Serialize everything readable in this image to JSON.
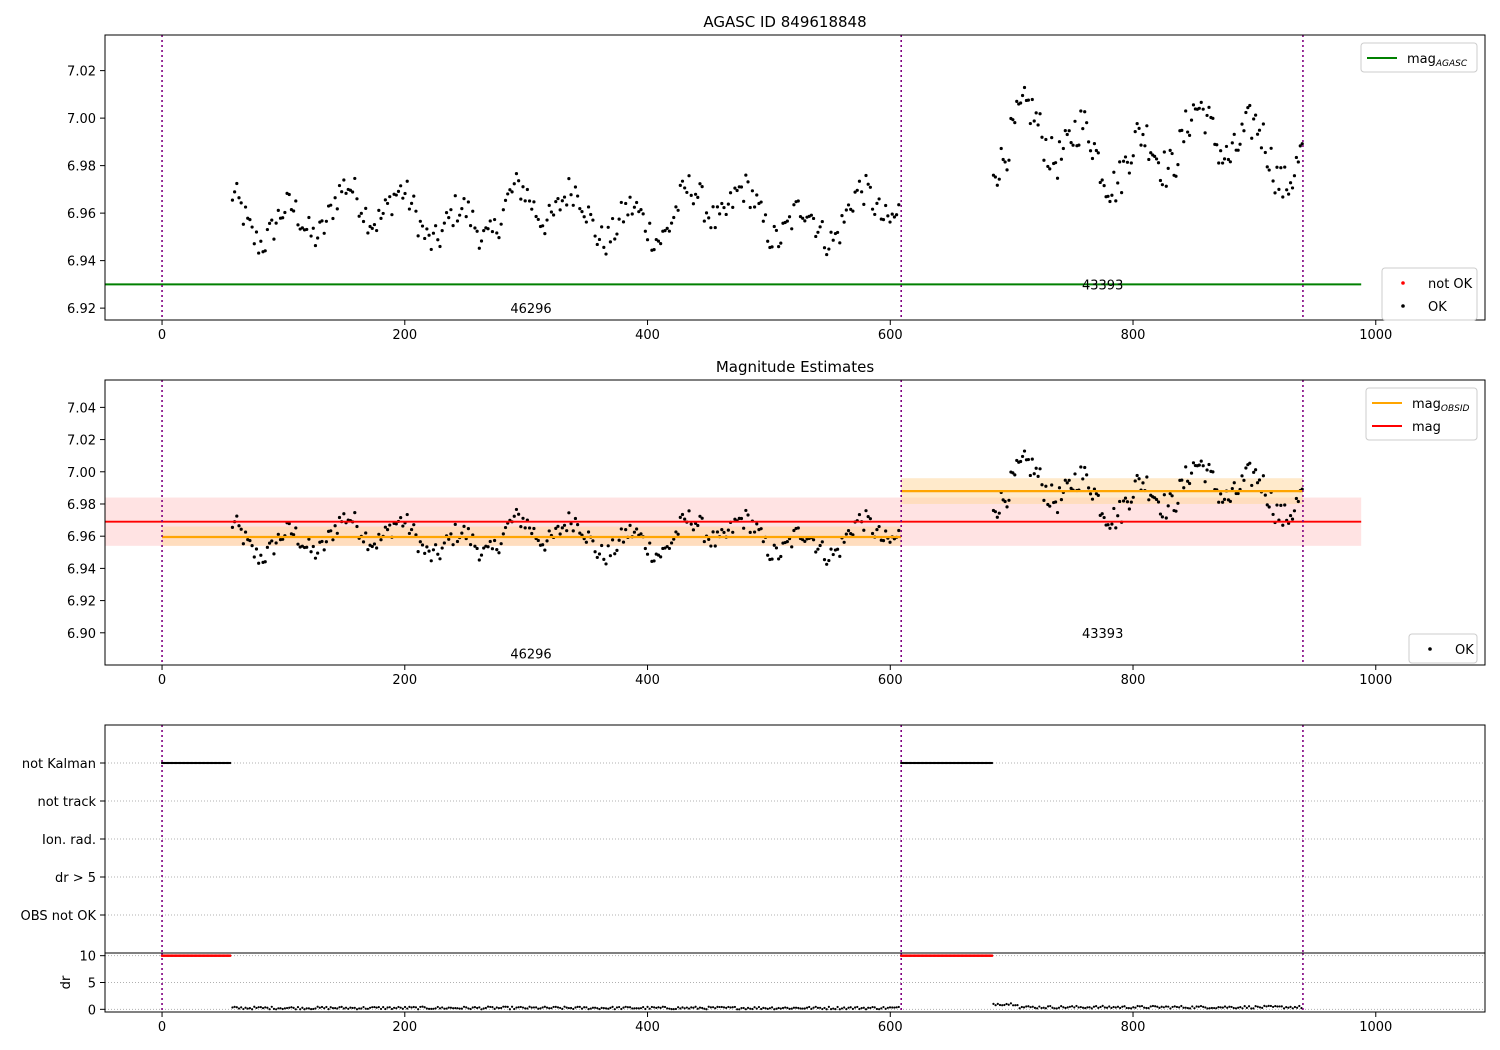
{
  "colors": {
    "agasc_line": "#008000",
    "obsid_line": "#ffa500",
    "mag_line": "#ff0000",
    "mag_band": "#ffcccc",
    "obsid_band": "#ffd9a0",
    "ok_points": "#000000",
    "not_ok_points": "#ff0000",
    "vline": "#800080",
    "grid": "#b0b0b0"
  },
  "chart_data": [
    {
      "type": "scatter",
      "title": "AGASC ID 849618848",
      "xlim": [
        -47,
        1090
      ],
      "ylim": [
        6.915,
        7.035
      ],
      "xticks": [
        0,
        200,
        400,
        600,
        800,
        1000
      ],
      "yticks": [
        6.92,
        6.94,
        6.96,
        6.98,
        7.0,
        7.02
      ],
      "vlines": [
        0,
        609,
        940
      ],
      "hlines": [
        {
          "name": "mag_AGASC",
          "y": 6.93,
          "x": [
            -47,
            988
          ]
        }
      ],
      "obsid_labels": [
        {
          "text": "46296",
          "x": 304,
          "y": 6.92
        },
        {
          "text": "43393",
          "x": 775,
          "y": 6.93
        }
      ],
      "series_summary": [
        {
          "name": "OK",
          "x_range": [
            58,
            608
          ],
          "y_mean": 6.9595,
          "y_spread": 0.0075
        },
        {
          "name": "OK",
          "x_range": [
            685,
            940
          ],
          "y_mean": 6.988,
          "y_spread": 0.0095
        },
        {
          "name": "not OK",
          "count": 0
        }
      ],
      "legends": [
        {
          "position": "top-right",
          "entries": [
            {
              "label": "mag",
              "sub": "AGASC",
              "kind": "line",
              "color": "#008000"
            }
          ]
        },
        {
          "position": "bottom-right",
          "entries": [
            {
              "label": "not OK",
              "kind": "dot",
              "color": "#ff0000"
            },
            {
              "label": "OK",
              "kind": "dot",
              "color": "#000000"
            }
          ]
        }
      ]
    },
    {
      "type": "scatter",
      "title": "Magnitude Estimates",
      "xlim": [
        -47,
        1090
      ],
      "ylim": [
        6.88,
        7.057
      ],
      "xticks": [
        0,
        200,
        400,
        600,
        800,
        1000
      ],
      "yticks": [
        6.9,
        6.92,
        6.94,
        6.96,
        6.98,
        7.0,
        7.02,
        7.04
      ],
      "vlines": [
        0,
        609,
        940
      ],
      "hlines": [
        {
          "name": "mag",
          "y": 6.969,
          "x": [
            -47,
            988
          ],
          "band": [
            6.954,
            6.984
          ]
        },
        {
          "name": "mag_OBSID 46296",
          "y": 6.9595,
          "x": [
            0,
            609
          ],
          "band": [
            6.954,
            6.966
          ]
        },
        {
          "name": "mag_OBSID 43393",
          "y": 6.988,
          "x": [
            609,
            940
          ],
          "band": [
            6.98,
            6.996
          ]
        }
      ],
      "obsid_labels": [
        {
          "text": "46296",
          "x": 304,
          "y": 6.887
        },
        {
          "text": "43393",
          "x": 775,
          "y": 6.9
        }
      ],
      "legends": [
        {
          "position": "top-right",
          "entries": [
            {
              "label": "mag",
              "sub": "OBSID",
              "kind": "line",
              "color": "#ffa500"
            },
            {
              "label": "mag",
              "sub": "",
              "kind": "line",
              "color": "#ff0000"
            }
          ]
        },
        {
          "position": "bottom-right",
          "entries": [
            {
              "label": "OK",
              "kind": "dot",
              "color": "#000000"
            }
          ]
        }
      ]
    },
    {
      "type": "scatter",
      "xlim": [
        -47,
        1090
      ],
      "flag_categories": [
        "not Kalman",
        "not track",
        "Ion. rad.",
        "dr > 5",
        "OBS not OK"
      ],
      "flag_segments": [
        {
          "category": "not Kalman",
          "x": [
            0,
            57
          ]
        },
        {
          "category": "not Kalman",
          "x": [
            609,
            684
          ]
        }
      ],
      "vlines": [
        0,
        609,
        940
      ]
    },
    {
      "type": "scatter",
      "xlim": [
        -47,
        1090
      ],
      "ylim": [
        -0.5,
        10.5
      ],
      "ylabel": "dr",
      "yticks": [
        0,
        5,
        10
      ],
      "xticks": [
        0,
        200,
        400,
        600,
        800,
        1000
      ],
      "vlines": [
        0,
        609,
        940
      ],
      "dr_clipped": [
        {
          "x": [
            0,
            57
          ],
          "y": 10
        },
        {
          "x": [
            609,
            684
          ],
          "y": 10
        }
      ],
      "dr_segments": [
        {
          "x": [
            58,
            608
          ],
          "y_mean": 0.25
        },
        {
          "x": [
            685,
            940
          ],
          "y_mean": 0.4
        }
      ]
    }
  ]
}
